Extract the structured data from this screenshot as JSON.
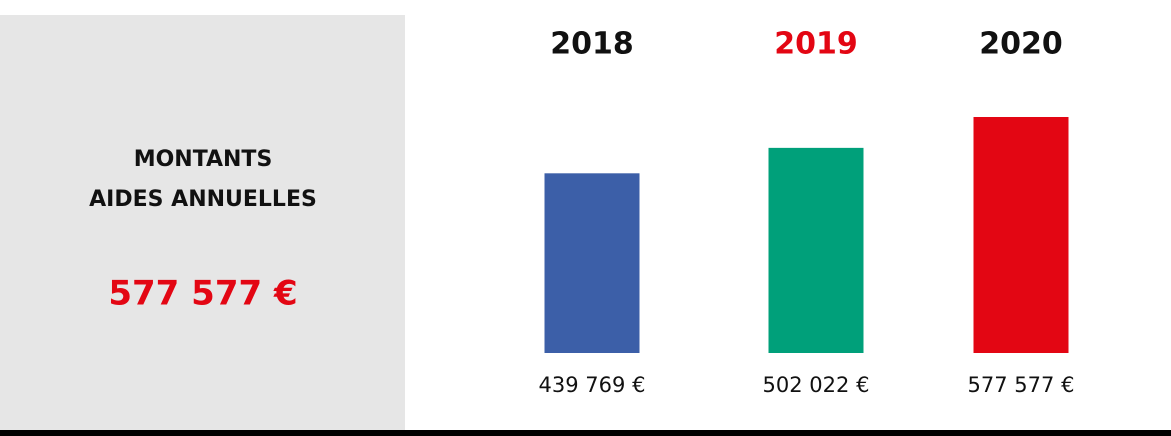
{
  "panel": {
    "title_lines": [
      "MONTANTS",
      "AIDES ANNUELLES"
    ],
    "total": "577 577 €",
    "total_color": "#e30613"
  },
  "chart_data": {
    "type": "bar",
    "categories": [
      "2018",
      "2019",
      "2020"
    ],
    "category_colors": [
      "#111111",
      "#e30613",
      "#111111"
    ],
    "values": [
      439769,
      502022,
      577577
    ],
    "value_labels": [
      "439 769 €",
      "502 022 €",
      "577 577 €"
    ],
    "colors": [
      "#3c5fa8",
      "#00a07a",
      "#e30613"
    ]
  }
}
